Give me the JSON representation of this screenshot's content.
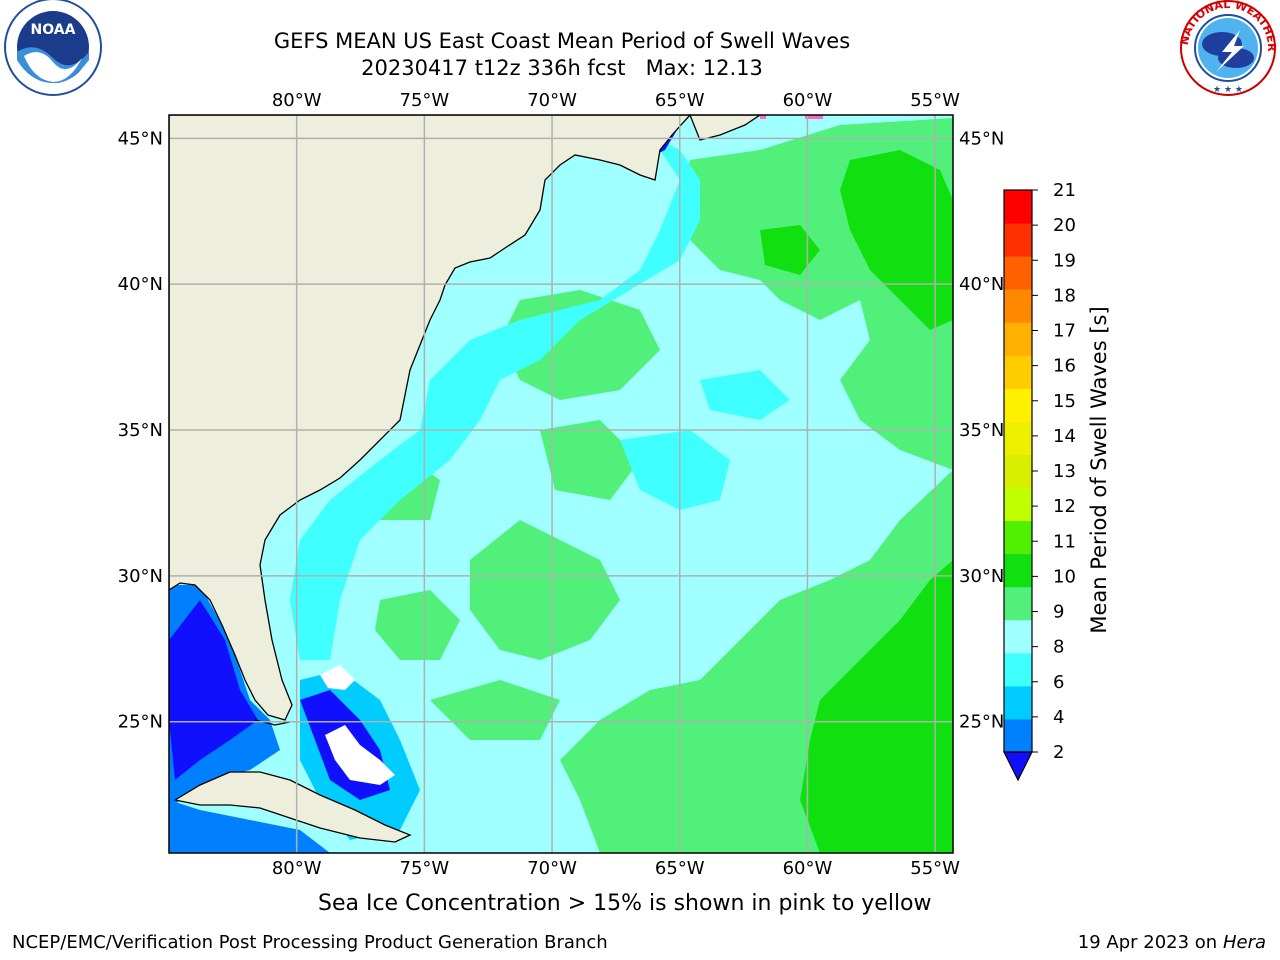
{
  "title": "GEFS MEAN US East Coast Mean Period of Swell Waves",
  "subtitle": "20230417 t12z 336h fcst   Max: 12.13",
  "map": {
    "lon_labels": [
      "80°W",
      "75°W",
      "70°W",
      "65°W",
      "60°W",
      "55°W"
    ],
    "lat_labels": [
      "45°N",
      "40°N",
      "35°N",
      "30°N",
      "25°N"
    ],
    "lon_values": [
      -80,
      -75,
      -70,
      -65,
      -60,
      -55
    ],
    "lat_values": [
      45,
      40,
      35,
      30,
      25
    ],
    "lon_range": [
      -85,
      -54.3
    ],
    "lat_range": [
      20.5,
      45.8
    ],
    "grid": true,
    "colors": {
      "land": "#EEEEDD",
      "grid": "#B0B0B0",
      "coast": "#000000"
    }
  },
  "colorbar": {
    "label": "Mean Period of Swell Waves [s]",
    "ticks": [
      "2",
      "4",
      "6",
      "8",
      "9",
      "10",
      "11",
      "12",
      "13",
      "14",
      "15",
      "16",
      "17",
      "18",
      "19",
      "20",
      "21"
    ],
    "colors": [
      "#0080FF",
      "#00CCFF",
      "#40FFFF",
      "#A0FFFF",
      "#50F07A",
      "#10E010",
      "#50EE00",
      "#C0FF00",
      "#D8F000",
      "#EEF000",
      "#FFF000",
      "#FFCC00",
      "#FFB000",
      "#FF8800",
      "#FF6000",
      "#FF3000",
      "#FF0000"
    ],
    "extend_color": "#1010FF"
  },
  "note": "Sea Ice Concentration > 15% is shown in pink to yellow",
  "footer_left": "NCEP/EMC/Verification Post Processing Product Generation Branch",
  "footer_right_date": "19 Apr 2023 on",
  "footer_right_host": "Hera",
  "logos": {
    "noaa": "NOAA",
    "nws": "NATIONAL WEATHER SERVICE"
  }
}
